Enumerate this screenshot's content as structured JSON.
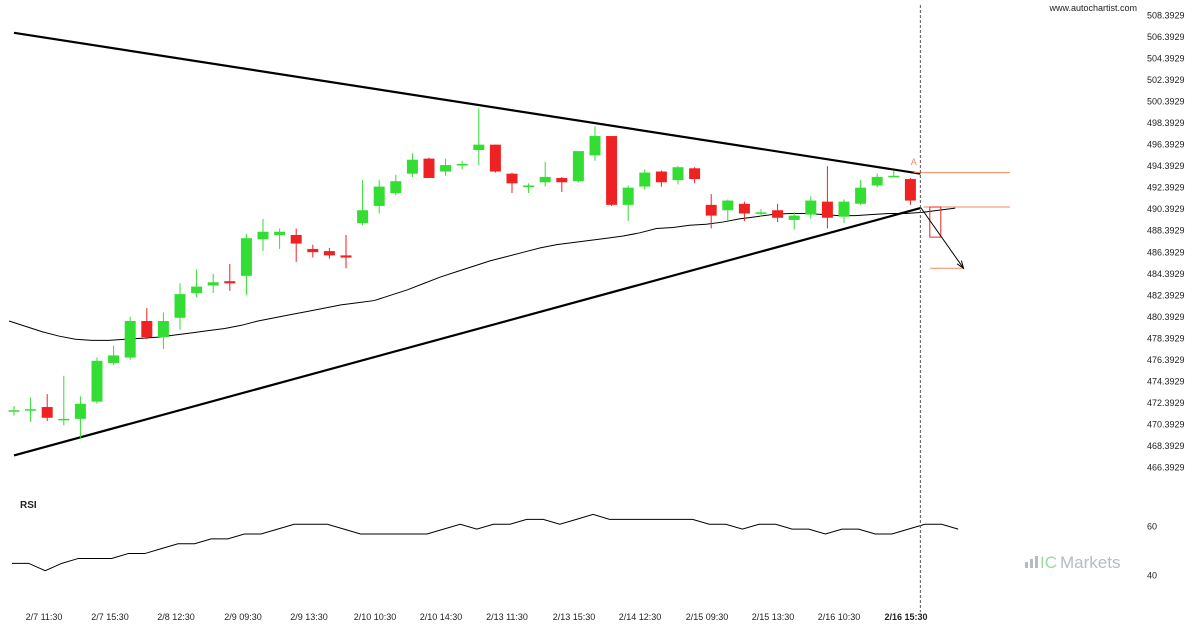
{
  "site": "www.autochartist.com",
  "brand": {
    "prefix": "IC",
    "name": "Markets",
    "colors": {
      "ic": "#9ed8a4",
      "name": "#b5bcc4"
    }
  },
  "colors": {
    "up": "#33dd33",
    "down": "#ee2222",
    "target": "#f08a5d",
    "trend": "#000000"
  },
  "chart_data": [
    {
      "type": "candlestick",
      "yticks": [
        "508.3929",
        "506.3929",
        "504.3929",
        "502.3929",
        "500.3929",
        "498.3929",
        "496.3929",
        "494.3929",
        "492.3929",
        "490.3929",
        "488.3929",
        "486.3929",
        "484.3929",
        "482.3929",
        "480.3929",
        "478.3929",
        "476.3929",
        "474.3929",
        "472.3929",
        "470.3929",
        "468.3929",
        "466.3929"
      ],
      "ylim": [
        465.4,
        509.2
      ],
      "xticks": [
        "2/7 11:30",
        "2/7 15:30",
        "2/8 12:30",
        "2/9 09:30",
        "2/9 13:30",
        "2/10 10:30",
        "2/10 14:30",
        "2/13 11:30",
        "2/13 15:30",
        "2/14 12:30",
        "2/15 09:30",
        "2/15 13:30",
        "2/16 10:30",
        "2/16 15:30"
      ],
      "highlighted_xtick": "2/16 15:30",
      "candles": [
        {
          "o": 471.6,
          "h": 472.1,
          "l": 471.2,
          "c": 471.7
        },
        {
          "o": 471.7,
          "h": 472.9,
          "l": 470.6,
          "c": 471.8
        },
        {
          "o": 472.0,
          "h": 473.2,
          "l": 470.7,
          "c": 471.0
        },
        {
          "o": 470.9,
          "h": 474.9,
          "l": 470.3,
          "c": 470.9
        },
        {
          "o": 470.9,
          "h": 473.0,
          "l": 469.0,
          "c": 472.3
        },
        {
          "o": 472.5,
          "h": 476.6,
          "l": 472.3,
          "c": 476.3
        },
        {
          "o": 476.1,
          "h": 477.7,
          "l": 475.9,
          "c": 476.8
        },
        {
          "o": 476.6,
          "h": 480.4,
          "l": 476.4,
          "c": 480.0
        },
        {
          "o": 480.0,
          "h": 481.2,
          "l": 478.3,
          "c": 478.5
        },
        {
          "o": 478.5,
          "h": 480.8,
          "l": 477.4,
          "c": 480.0
        },
        {
          "o": 480.3,
          "h": 483.5,
          "l": 479.2,
          "c": 482.5
        },
        {
          "o": 482.6,
          "h": 484.8,
          "l": 482.2,
          "c": 483.2
        },
        {
          "o": 483.3,
          "h": 484.4,
          "l": 482.6,
          "c": 483.6
        },
        {
          "o": 483.7,
          "h": 485.3,
          "l": 482.8,
          "c": 483.5
        },
        {
          "o": 484.2,
          "h": 488.1,
          "l": 482.4,
          "c": 487.7
        },
        {
          "o": 487.6,
          "h": 489.5,
          "l": 486.5,
          "c": 488.3
        },
        {
          "o": 488.0,
          "h": 488.6,
          "l": 486.7,
          "c": 488.3
        },
        {
          "o": 488.0,
          "h": 488.6,
          "l": 485.5,
          "c": 487.2
        },
        {
          "o": 486.7,
          "h": 487.1,
          "l": 485.9,
          "c": 486.4
        },
        {
          "o": 486.5,
          "h": 486.8,
          "l": 485.8,
          "c": 486.1
        },
        {
          "o": 486.1,
          "h": 488.0,
          "l": 484.9,
          "c": 485.9
        },
        {
          "o": 489.1,
          "h": 493.1,
          "l": 488.9,
          "c": 490.3
        },
        {
          "o": 490.7,
          "h": 493.1,
          "l": 490.0,
          "c": 492.5
        },
        {
          "o": 491.9,
          "h": 493.6,
          "l": 491.7,
          "c": 493.0
        },
        {
          "o": 493.7,
          "h": 495.6,
          "l": 493.4,
          "c": 495.0
        },
        {
          "o": 495.1,
          "h": 495.2,
          "l": 493.3,
          "c": 493.3
        },
        {
          "o": 493.9,
          "h": 495.1,
          "l": 493.5,
          "c": 494.5
        },
        {
          "o": 494.5,
          "h": 494.9,
          "l": 494.1,
          "c": 494.6
        },
        {
          "o": 495.9,
          "h": 499.8,
          "l": 494.5,
          "c": 496.4
        },
        {
          "o": 496.4,
          "h": 496.4,
          "l": 493.8,
          "c": 493.9
        },
        {
          "o": 493.7,
          "h": 493.8,
          "l": 491.9,
          "c": 492.8
        },
        {
          "o": 492.5,
          "h": 492.8,
          "l": 491.9,
          "c": 492.6
        },
        {
          "o": 492.9,
          "h": 494.8,
          "l": 492.5,
          "c": 493.4
        },
        {
          "o": 493.3,
          "h": 493.4,
          "l": 492.0,
          "c": 492.9
        },
        {
          "o": 493.0,
          "h": 495.7,
          "l": 492.9,
          "c": 495.8
        },
        {
          "o": 495.4,
          "h": 498.1,
          "l": 494.9,
          "c": 497.2
        },
        {
          "o": 497.2,
          "h": 497.2,
          "l": 490.7,
          "c": 490.8
        },
        {
          "o": 490.8,
          "h": 492.6,
          "l": 489.3,
          "c": 492.4
        },
        {
          "o": 492.5,
          "h": 494.1,
          "l": 492.2,
          "c": 493.8
        },
        {
          "o": 493.9,
          "h": 494.0,
          "l": 492.5,
          "c": 492.9
        },
        {
          "o": 493.1,
          "h": 494.4,
          "l": 492.7,
          "c": 494.3
        },
        {
          "o": 494.2,
          "h": 494.3,
          "l": 492.8,
          "c": 493.2
        },
        {
          "o": 490.8,
          "h": 491.8,
          "l": 488.6,
          "c": 489.8
        },
        {
          "o": 490.3,
          "h": 491.3,
          "l": 489.3,
          "c": 491.2
        },
        {
          "o": 490.9,
          "h": 491.1,
          "l": 489.3,
          "c": 490.0
        },
        {
          "o": 490.1,
          "h": 490.4,
          "l": 489.7,
          "c": 490.1
        },
        {
          "o": 490.3,
          "h": 490.9,
          "l": 489.2,
          "c": 489.6
        },
        {
          "o": 489.4,
          "h": 490.1,
          "l": 488.5,
          "c": 489.8
        },
        {
          "o": 489.9,
          "h": 491.6,
          "l": 489.5,
          "c": 491.2
        },
        {
          "o": 491.1,
          "h": 494.4,
          "l": 488.6,
          "c": 489.6
        },
        {
          "o": 489.7,
          "h": 491.3,
          "l": 489.1,
          "c": 491.1
        },
        {
          "o": 490.9,
          "h": 493.1,
          "l": 490.8,
          "c": 492.4
        },
        {
          "o": 492.6,
          "h": 493.7,
          "l": 492.4,
          "c": 493.4
        },
        {
          "o": 493.5,
          "h": 494.0,
          "l": 493.4,
          "c": 493.5
        },
        {
          "o": 493.2,
          "h": 493.3,
          "l": 490.8,
          "c": 491.2
        }
      ],
      "moving_average": [
        480.0,
        479.5,
        479.0,
        478.6,
        478.3,
        478.2,
        478.2,
        478.3,
        478.4,
        478.5,
        478.7,
        478.9,
        479.1,
        479.3,
        479.6,
        480.0,
        480.3,
        480.6,
        480.9,
        481.2,
        481.5,
        481.7,
        481.9,
        482.4,
        482.9,
        483.5,
        484.1,
        484.6,
        485.1,
        485.6,
        486.0,
        486.4,
        486.8,
        487.1,
        487.3,
        487.5,
        487.7,
        487.9,
        488.2,
        488.6,
        488.7,
        488.9,
        489.0,
        489.2,
        489.5,
        489.7,
        489.9,
        490.0,
        490.0,
        489.9,
        489.8,
        489.8,
        489.9,
        490.0,
        490.0,
        490.1,
        490.3,
        490.5
      ],
      "trendlines": [
        {
          "from": [
            0,
            506.8
          ],
          "to": [
            54.6,
            493.7
          ]
        },
        {
          "from": [
            0,
            467.5
          ],
          "to": [
            54.6,
            490.5
          ]
        }
      ],
      "levels": [
        {
          "value": 493.8,
          "from": 54.2,
          "to": 60.0
        },
        {
          "value": 490.6,
          "from": 54.8,
          "to": 60.0
        },
        {
          "value": 484.9,
          "from": 55.2,
          "to": 57.2
        }
      ],
      "projection": {
        "candle": {
          "x": 55.5,
          "o": 490.6,
          "c": 487.8
        },
        "arrow": {
          "from": [
            54.6,
            490.6
          ],
          "to": [
            57.2,
            484.9
          ]
        }
      },
      "marker": "A",
      "marker_at": [
        54.2,
        494.5
      ],
      "current_index": 54.6
    },
    {
      "type": "line",
      "title": "RSI",
      "yticks": [
        "60",
        "40"
      ],
      "ylim": [
        30,
        75
      ],
      "values": [
        45,
        45,
        42,
        45,
        47,
        47,
        47,
        49,
        49,
        51,
        53,
        53,
        55,
        55,
        57,
        57,
        59,
        61,
        61,
        61,
        59,
        57,
        57,
        57,
        57,
        57,
        59,
        61,
        59,
        61,
        61,
        63,
        63,
        61,
        63,
        65,
        63,
        63,
        63,
        63,
        63,
        63,
        61,
        61,
        59,
        61,
        61,
        59,
        59,
        57,
        59,
        59,
        57,
        57,
        59,
        61,
        61,
        59
      ]
    }
  ]
}
